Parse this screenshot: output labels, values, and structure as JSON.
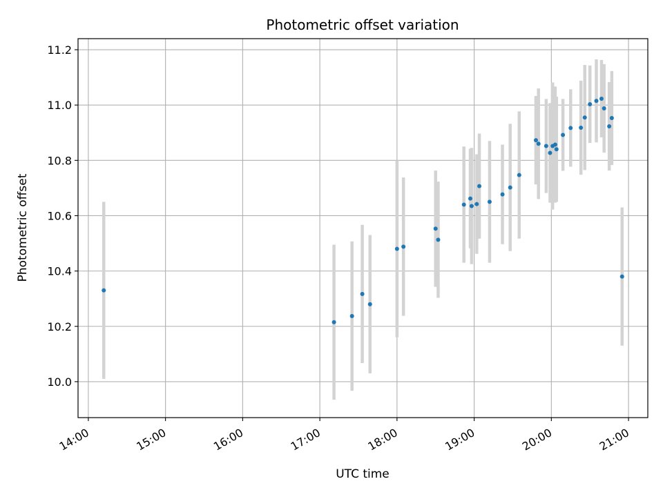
{
  "chart_data": {
    "type": "scatter",
    "title": "Photometric offset variation",
    "xlabel": "UTC time",
    "ylabel": "Photometric offset",
    "x_is_time": true,
    "xlim": [
      "13:52",
      "21:15"
    ],
    "ylim": [
      9.87,
      11.24
    ],
    "x_ticks": [
      "14:00",
      "15:00",
      "16:00",
      "17:00",
      "18:00",
      "19:00",
      "20:00",
      "21:00"
    ],
    "y_ticks": [
      "10.0",
      "10.2",
      "10.4",
      "10.6",
      "10.8",
      "11.0",
      "11.2"
    ],
    "grid": true,
    "legend": "none",
    "colors": {
      "point": "#1f77b4",
      "errorbar": "#d3d3d3",
      "grid": "#b0b0b0"
    },
    "points": [
      {
        "x": "14:12",
        "y": 10.33,
        "err": 0.32
      },
      {
        "x": "17:11",
        "y": 10.215,
        "err": 0.28
      },
      {
        "x": "17:25",
        "y": 10.237,
        "err": 0.27
      },
      {
        "x": "17:33",
        "y": 10.317,
        "err": 0.25
      },
      {
        "x": "17:39",
        "y": 10.28,
        "err": 0.25
      },
      {
        "x": "18:00",
        "y": 10.48,
        "err": 0.32
      },
      {
        "x": "18:05",
        "y": 10.488,
        "err": 0.25
      },
      {
        "x": "18:30",
        "y": 10.553,
        "err": 0.21
      },
      {
        "x": "18:32",
        "y": 10.513,
        "err": 0.21
      },
      {
        "x": "18:52",
        "y": 10.64,
        "err": 0.21
      },
      {
        "x": "18:57",
        "y": 10.662,
        "err": 0.18
      },
      {
        "x": "18:58",
        "y": 10.635,
        "err": 0.21
      },
      {
        "x": "19:02",
        "y": 10.642,
        "err": 0.18
      },
      {
        "x": "19:04",
        "y": 10.707,
        "err": 0.19
      },
      {
        "x": "19:12",
        "y": 10.65,
        "err": 0.22
      },
      {
        "x": "19:22",
        "y": 10.677,
        "err": 0.18
      },
      {
        "x": "19:28",
        "y": 10.702,
        "err": 0.23
      },
      {
        "x": "19:35",
        "y": 10.747,
        "err": 0.23
      },
      {
        "x": "19:48",
        "y": 10.873,
        "err": 0.16
      },
      {
        "x": "19:50",
        "y": 10.86,
        "err": 0.2
      },
      {
        "x": "19:56",
        "y": 10.852,
        "err": 0.17
      },
      {
        "x": "19:59",
        "y": 10.827,
        "err": 0.18
      },
      {
        "x": "20:01",
        "y": 10.852,
        "err": 0.23
      },
      {
        "x": "20:03",
        "y": 10.857,
        "err": 0.21
      },
      {
        "x": "20:04",
        "y": 10.84,
        "err": 0.19
      },
      {
        "x": "20:09",
        "y": 10.892,
        "err": 0.13
      },
      {
        "x": "20:15",
        "y": 10.917,
        "err": 0.14
      },
      {
        "x": "20:23",
        "y": 10.918,
        "err": 0.17
      },
      {
        "x": "20:26",
        "y": 10.955,
        "err": 0.19
      },
      {
        "x": "20:30",
        "y": 11.003,
        "err": 0.14
      },
      {
        "x": "20:35",
        "y": 11.015,
        "err": 0.15
      },
      {
        "x": "20:39",
        "y": 11.023,
        "err": 0.14
      },
      {
        "x": "20:41",
        "y": 10.988,
        "err": 0.16
      },
      {
        "x": "20:45",
        "y": 10.923,
        "err": 0.16
      },
      {
        "x": "20:47",
        "y": 10.953,
        "err": 0.17
      },
      {
        "x": "20:55",
        "y": 10.38,
        "err": 0.25
      }
    ]
  }
}
